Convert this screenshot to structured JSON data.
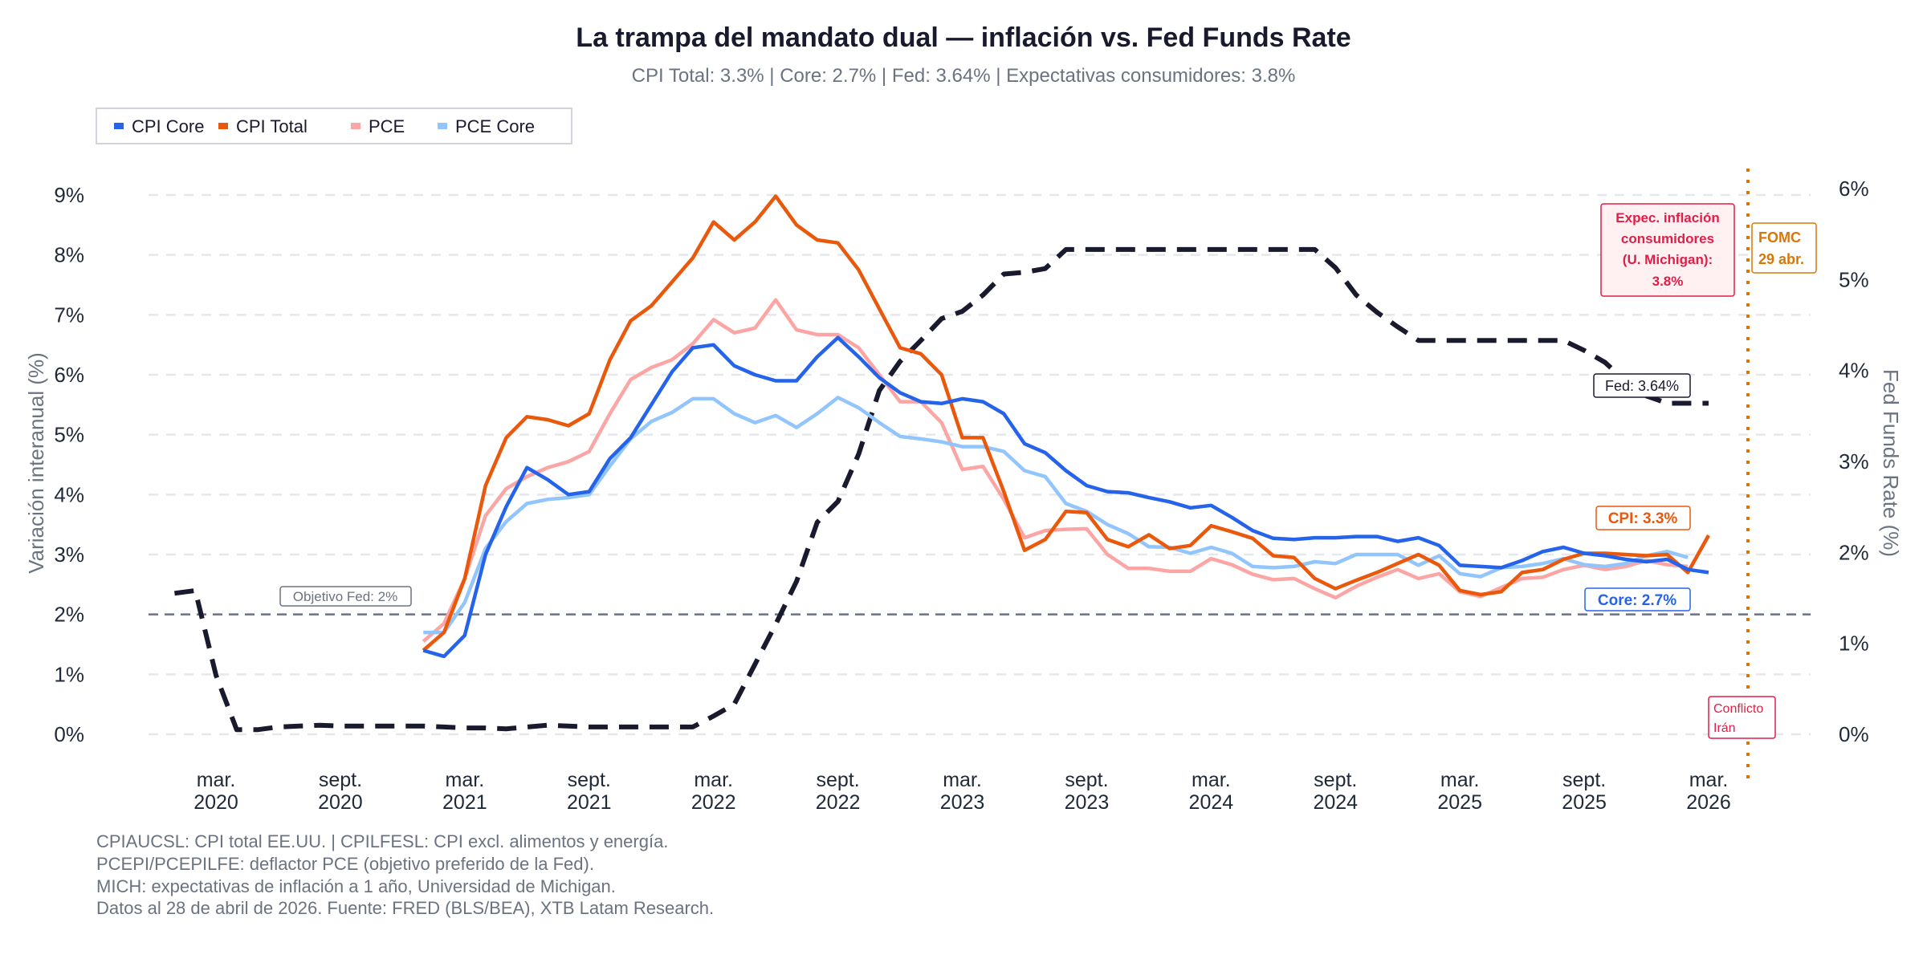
{
  "chart_data": {
    "type": "line",
    "title": "La trampa del mandato dual — inflación vs. Fed Funds Rate",
    "subtitle": "CPI Total: 3.3% | Core: 2.7% | Fed: 3.64% | Expectativas consumidores: 3.8%",
    "ylabel_left": "Variación interanual (%)",
    "ylabel_right": "Fed Funds Rate (%)",
    "ylim_left": [
      0,
      9
    ],
    "ylim_right": [
      0,
      6
    ],
    "yticks_left": [
      "0%",
      "1%",
      "2%",
      "3%",
      "4%",
      "5%",
      "6%",
      "7%",
      "8%",
      "9%"
    ],
    "yticks_right": [
      "0%",
      "1%",
      "2%",
      "3%",
      "4%",
      "5%",
      "6%"
    ],
    "xticks": [
      {
        "date": "2020-03",
        "l1": "mar.",
        "l2": "2020"
      },
      {
        "date": "2020-09",
        "l1": "sept.",
        "l2": "2020"
      },
      {
        "date": "2021-03",
        "l1": "mar.",
        "l2": "2021"
      },
      {
        "date": "2021-09",
        "l1": "sept.",
        "l2": "2021"
      },
      {
        "date": "2022-03",
        "l1": "mar.",
        "l2": "2022"
      },
      {
        "date": "2022-09",
        "l1": "sept.",
        "l2": "2022"
      },
      {
        "date": "2023-03",
        "l1": "mar.",
        "l2": "2023"
      },
      {
        "date": "2023-09",
        "l1": "sept.",
        "l2": "2023"
      },
      {
        "date": "2024-03",
        "l1": "mar.",
        "l2": "2024"
      },
      {
        "date": "2024-09",
        "l1": "sept.",
        "l2": "2024"
      },
      {
        "date": "2025-03",
        "l1": "mar.",
        "l2": "2025"
      },
      {
        "date": "2025-09",
        "l1": "sept.",
        "l2": "2025"
      },
      {
        "date": "2026-03",
        "l1": "mar.",
        "l2": "2026"
      }
    ],
    "grid": true,
    "legend_position": "top-left",
    "legend": [
      {
        "name": "CPI Core",
        "color": "#2563eb"
      },
      {
        "name": "CPI Total",
        "color": "#ea580c"
      },
      {
        "name": "PCE",
        "color": "#fca5a5"
      },
      {
        "name": "PCE Core",
        "color": "#93c5fd"
      }
    ],
    "series": [
      {
        "name": "CPI Core",
        "axis": "left",
        "color": "#2563eb",
        "start": "2021-01",
        "values": [
          1.4,
          1.3,
          1.65,
          3.0,
          3.8,
          4.45,
          4.25,
          4.0,
          4.05,
          4.6,
          4.95,
          5.5,
          6.05,
          6.45,
          6.5,
          6.15,
          6.0,
          5.9,
          5.9,
          6.3,
          6.62,
          6.3,
          5.95,
          5.7,
          5.55,
          5.52,
          5.6,
          5.55,
          5.35,
          4.85,
          4.7,
          4.4,
          4.15,
          4.05,
          4.03,
          3.95,
          3.88,
          3.78,
          3.82,
          3.62,
          3.4,
          3.27,
          3.25,
          3.28,
          3.28,
          3.3,
          3.3,
          3.22,
          3.28,
          3.15,
          2.82,
          2.8,
          2.78,
          2.9,
          3.05,
          3.12,
          3.02,
          2.98,
          2.92,
          2.88,
          2.92,
          2.75,
          2.7
        ]
      },
      {
        "name": "CPI Total",
        "axis": "left",
        "color": "#ea580c",
        "start": "2021-01",
        "values": [
          1.4,
          1.7,
          2.6,
          4.15,
          4.95,
          5.3,
          5.25,
          5.15,
          5.35,
          6.25,
          6.9,
          7.15,
          7.55,
          7.95,
          8.55,
          8.25,
          8.55,
          8.98,
          8.5,
          8.25,
          8.2,
          7.75,
          7.1,
          6.45,
          6.35,
          6.0,
          4.95,
          4.95,
          4.05,
          3.07,
          3.25,
          3.72,
          3.7,
          3.25,
          3.13,
          3.33,
          3.1,
          3.15,
          3.48,
          3.38,
          3.27,
          2.98,
          2.95,
          2.6,
          2.43,
          2.57,
          2.7,
          2.85,
          3.0,
          2.82,
          2.4,
          2.33,
          2.38,
          2.7,
          2.75,
          2.92,
          3.02,
          3.02,
          3.0,
          2.98,
          3.0,
          2.7,
          3.32
        ]
      },
      {
        "name": "PCE",
        "axis": "left",
        "color": "#fca5a5",
        "start": "2021-01",
        "values": [
          1.55,
          1.85,
          2.6,
          3.65,
          4.1,
          4.3,
          4.45,
          4.55,
          4.72,
          5.35,
          5.92,
          6.12,
          6.25,
          6.52,
          6.92,
          6.7,
          6.78,
          7.25,
          6.75,
          6.67,
          6.67,
          6.45,
          6.0,
          5.55,
          5.55,
          5.2,
          4.42,
          4.47,
          3.92,
          3.28,
          3.4,
          3.42,
          3.43,
          3.0,
          2.77,
          2.77,
          2.72,
          2.72,
          2.93,
          2.83,
          2.67,
          2.58,
          2.6,
          2.43,
          2.28,
          2.47,
          2.62,
          2.75,
          2.6,
          2.68,
          2.38,
          2.3,
          2.45,
          2.6,
          2.62,
          2.75,
          2.82,
          2.75,
          2.8,
          2.9,
          2.83,
          2.8
        ]
      },
      {
        "name": "PCE Core",
        "axis": "left",
        "color": "#93c5fd",
        "start": "2021-01",
        "values": [
          1.7,
          1.7,
          2.2,
          3.1,
          3.55,
          3.85,
          3.92,
          3.95,
          4.0,
          4.48,
          4.93,
          5.22,
          5.37,
          5.6,
          5.6,
          5.35,
          5.2,
          5.32,
          5.12,
          5.35,
          5.62,
          5.45,
          5.2,
          4.97,
          4.93,
          4.88,
          4.8,
          4.8,
          4.72,
          4.4,
          4.3,
          3.85,
          3.72,
          3.5,
          3.35,
          3.13,
          3.12,
          3.02,
          3.12,
          3.02,
          2.8,
          2.78,
          2.8,
          2.88,
          2.85,
          3.0,
          3.0,
          3.0,
          2.82,
          2.98,
          2.68,
          2.63,
          2.78,
          2.8,
          2.85,
          2.93,
          2.83,
          2.8,
          2.85,
          2.98,
          3.05,
          2.95
        ]
      },
      {
        "name": "Fed Funds Rate",
        "axis": "right",
        "color": "#1a1a2e",
        "dashed": true,
        "start": "2020-01",
        "values": [
          1.55,
          1.58,
          0.65,
          0.05,
          0.05,
          0.08,
          0.09,
          0.1,
          0.09,
          0.09,
          0.09,
          0.09,
          0.09,
          0.08,
          0.07,
          0.07,
          0.06,
          0.08,
          0.1,
          0.09,
          0.08,
          0.08,
          0.08,
          0.08,
          0.08,
          0.08,
          0.2,
          0.33,
          0.77,
          1.21,
          1.68,
          2.33,
          2.56,
          3.08,
          3.78,
          4.1,
          4.33,
          4.57,
          4.65,
          4.83,
          5.06,
          5.08,
          5.12,
          5.33,
          5.33,
          5.33,
          5.33,
          5.33,
          5.33,
          5.33,
          5.33,
          5.33,
          5.33,
          5.33,
          5.33,
          5.33,
          5.13,
          4.83,
          4.64,
          4.48,
          4.33,
          4.33,
          4.33,
          4.33,
          4.33,
          4.33,
          4.33,
          4.33,
          4.22,
          4.09,
          3.88,
          3.72,
          3.64,
          3.64,
          3.64
        ]
      }
    ],
    "reference_line": {
      "value": 2,
      "axis": "left",
      "label": "Objetivo Fed: 2%",
      "color": "#6b7280"
    },
    "vertical_line": {
      "date": "2026-04-29",
      "color": "#d97706"
    },
    "annotations": {
      "expectations": {
        "lines": [
          "Expec. inflación",
          "consumidores",
          "(U. Michigan):",
          "3.8%"
        ],
        "color": "#e11d48"
      },
      "fomc": {
        "lines": [
          "FOMC",
          "29 abr."
        ],
        "color": "#d97706"
      },
      "fed": {
        "text": "Fed: 3.64%",
        "color": "#1a1a2e"
      },
      "cpi": {
        "text": "CPI: 3.3%",
        "color": "#ea580c"
      },
      "core": {
        "text": "Core: 2.7%",
        "color": "#2563eb"
      },
      "conflict": {
        "lines": [
          "Conflicto",
          "Irán"
        ],
        "color": "#e11d48"
      }
    }
  },
  "footer": [
    "CPIAUCSL: CPI total EE.UU. | CPILFESL: CPI excl. alimentos y energía.",
    "PCEPI/PCEPILFE: deflactor PCE (objetivo preferido de la Fed).",
    "MICH: expectativas de inflación a 1 año, Universidad de Michigan.",
    "Datos al 28 de abril de 2026. Fuente: FRED (BLS/BEA), XTB Latam Research."
  ]
}
